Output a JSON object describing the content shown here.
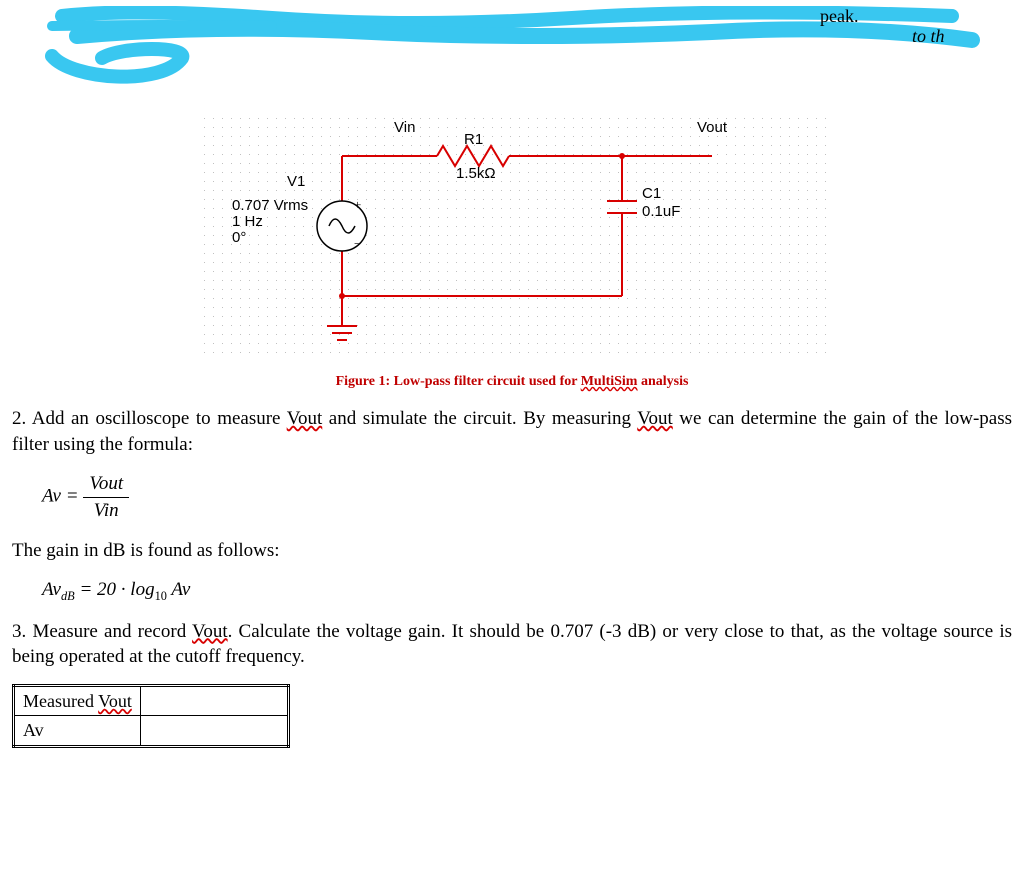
{
  "scribble": {
    "highlight_color": "#39c7f0",
    "text_fragments": [
      "peak.",
      "to th"
    ]
  },
  "circuit": {
    "background": "#ffffff",
    "grid_color": "#c0c0c0",
    "wire_color": "#d80000",
    "text_color": "#000000",
    "labels": {
      "vin": "Vin",
      "vout": "Vout",
      "r1": "R1",
      "r1_value": "1.5kΩ",
      "v1": "V1",
      "v1_vrms": "0.707 Vrms",
      "v1_freq": "1 Hz",
      "v1_phase": "0°",
      "c1": "C1",
      "c1_value": "0.1uF"
    }
  },
  "caption": {
    "prefix": "Figure 1: ",
    "text_before": "Low-pass filter circuit used for ",
    "wavy": "MultiSim",
    "text_after": " analysis"
  },
  "para2_before": "2. Add an oscilloscope to measure ",
  "para2_mid": " and simulate the circuit.  By measuring ",
  "para2_after": " we can determine the gain of the low-pass filter using the formula:",
  "vout_word": "Vout",
  "formula1": {
    "lhs": "Av =",
    "num": "Vout",
    "den": "Vin"
  },
  "gain_db_text": "The gain in dB is found as follows:",
  "formula2": {
    "lhs": "Av",
    "sub": "dB",
    "rhs": " = 20 · log",
    "logsub": "10",
    "tail": " Av"
  },
  "para3_before": "3. Measure and record ",
  "para3_mid": ". Calculate the voltage gain. It should be ",
  "para3_val": "0.707 (-3 dB)",
  "para3_after": " or very close to that, as the voltage source is being operated at the cutoff frequency.",
  "table": {
    "row1": "Measured ",
    "row1_wavy": "Vout",
    "row2": "Av"
  }
}
